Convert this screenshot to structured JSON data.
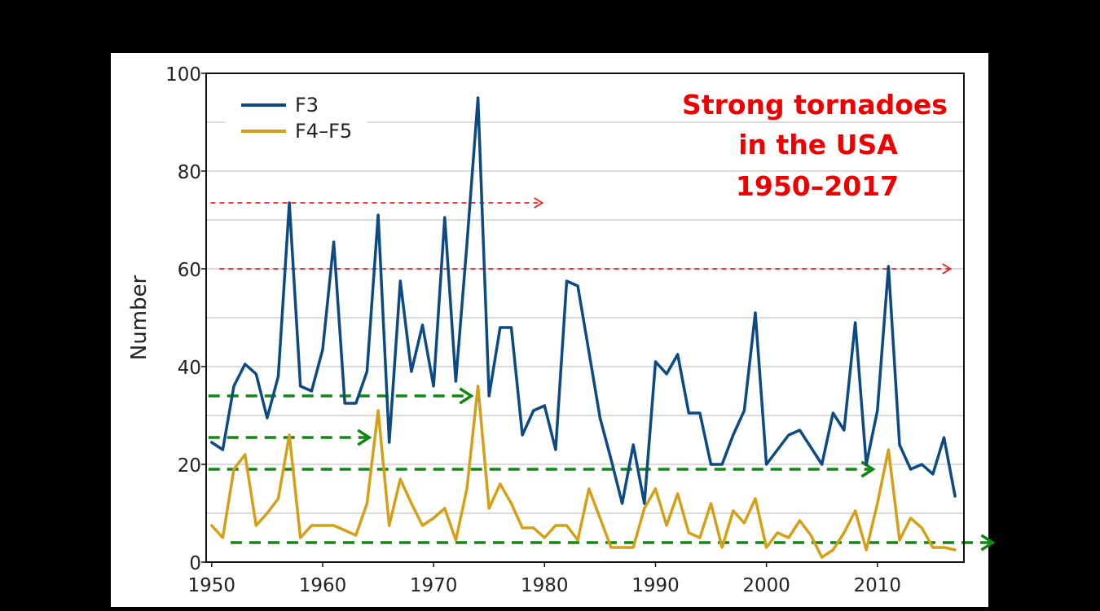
{
  "chart_data": {
    "type": "line",
    "title_lines": [
      "Strong tornadoes",
      "in the USA",
      "1950–2017"
    ],
    "xlabel": "",
    "ylabel": "Number",
    "xlim": [
      1949.5,
      2017.8
    ],
    "ylim": [
      0,
      100
    ],
    "x_ticks": [
      "1950",
      "1960",
      "1970",
      "1980",
      "1990",
      "2000",
      "2010"
    ],
    "y_ticks": [
      "0",
      "20",
      "40",
      "60",
      "80",
      "100"
    ],
    "grid": true,
    "legend_position": "top-left",
    "series": [
      {
        "name": "F3",
        "color": "#0d4a82",
        "x": [
          1950,
          1951,
          1952,
          1953,
          1954,
          1955,
          1956,
          1957,
          1958,
          1959,
          1960,
          1961,
          1962,
          1963,
          1964,
          1965,
          1966,
          1967,
          1968,
          1969,
          1970,
          1971,
          1972,
          1973,
          1974,
          1975,
          1976,
          1977,
          1978,
          1979,
          1980,
          1981,
          1982,
          1983,
          1984,
          1985,
          1986,
          1987,
          1988,
          1989,
          1990,
          1991,
          1992,
          1993,
          1994,
          1995,
          1996,
          1997,
          1998,
          1999,
          2000,
          2001,
          2002,
          2003,
          2004,
          2005,
          2006,
          2007,
          2008,
          2009,
          2010,
          2011,
          2012,
          2013,
          2014,
          2015,
          2016,
          2017
        ],
        "values": [
          24.5,
          23,
          36,
          40.5,
          38.5,
          29.5,
          38,
          73.5,
          36,
          35,
          43.5,
          65.5,
          32.5,
          32.5,
          39,
          71,
          24.5,
          57.5,
          39,
          48.5,
          36,
          70.5,
          37,
          65,
          95,
          34,
          48,
          48,
          26,
          31,
          32,
          23,
          57.5,
          56.5,
          43,
          29.5,
          21,
          12,
          24,
          12,
          41,
          38.5,
          42.5,
          30.5,
          30.5,
          20,
          20,
          26,
          31,
          51,
          20,
          23,
          26,
          27,
          23.5,
          20,
          30.5,
          27,
          49,
          20,
          31,
          60.5,
          24,
          19,
          20,
          18,
          25.5,
          13.5
        ]
      },
      {
        "name": "F4–F5",
        "color": "#d4a017",
        "x": [
          1950,
          1951,
          1952,
          1953,
          1954,
          1955,
          1956,
          1957,
          1958,
          1959,
          1960,
          1961,
          1962,
          1963,
          1964,
          1965,
          1966,
          1967,
          1968,
          1969,
          1970,
          1971,
          1972,
          1973,
          1974,
          1975,
          1976,
          1977,
          1978,
          1979,
          1980,
          1981,
          1982,
          1983,
          1984,
          1985,
          1986,
          1987,
          1988,
          1989,
          1990,
          1991,
          1992,
          1993,
          1994,
          1995,
          1996,
          1997,
          1998,
          1999,
          2000,
          2001,
          2002,
          2003,
          2004,
          2005,
          2006,
          2007,
          2008,
          2009,
          2010,
          2011,
          2012,
          2013,
          2014,
          2015,
          2016,
          2017
        ],
        "values": [
          7.5,
          5,
          19,
          22,
          7.5,
          10,
          13,
          26,
          5,
          7.5,
          7.5,
          7.5,
          6.5,
          5.5,
          12,
          31,
          7.5,
          17,
          12,
          7.5,
          9,
          11,
          4.5,
          15,
          36,
          11,
          16,
          12,
          7,
          7,
          5,
          7.5,
          7.5,
          4.5,
          15,
          9,
          3,
          3,
          3,
          11,
          15,
          7.5,
          14,
          6,
          5,
          12,
          3,
          10.5,
          8,
          13,
          3,
          6,
          5,
          8.5,
          5.5,
          1,
          2.5,
          6,
          10.5,
          2.5,
          12,
          23,
          4.5,
          9,
          7,
          3,
          3,
          2.5
        ]
      }
    ],
    "annotations": [
      {
        "type": "dashed-arrow",
        "color": "#ee2222",
        "y": 73.5,
        "x_from": 1949.9,
        "x_to": 1979.8
      },
      {
        "type": "dashed-arrow",
        "color": "#ee2222",
        "y": 60,
        "x_from": 1950.7,
        "x_to": 2016.6
      },
      {
        "type": "dashed-arrow",
        "color": "#118811",
        "y": 34,
        "x_from": 1949.7,
        "x_to": 1973.4
      },
      {
        "type": "dashed-arrow",
        "color": "#118811",
        "y": 25.5,
        "x_from": 1949.7,
        "x_to": 1964.2
      },
      {
        "type": "dashed-arrow",
        "color": "#118811",
        "y": 19,
        "x_from": 1949.7,
        "x_to": 2009.6
      },
      {
        "type": "dashed-arrow",
        "color": "#118811",
        "y": 4,
        "x_from": 1951.7,
        "x_to": 2020.4
      }
    ]
  }
}
